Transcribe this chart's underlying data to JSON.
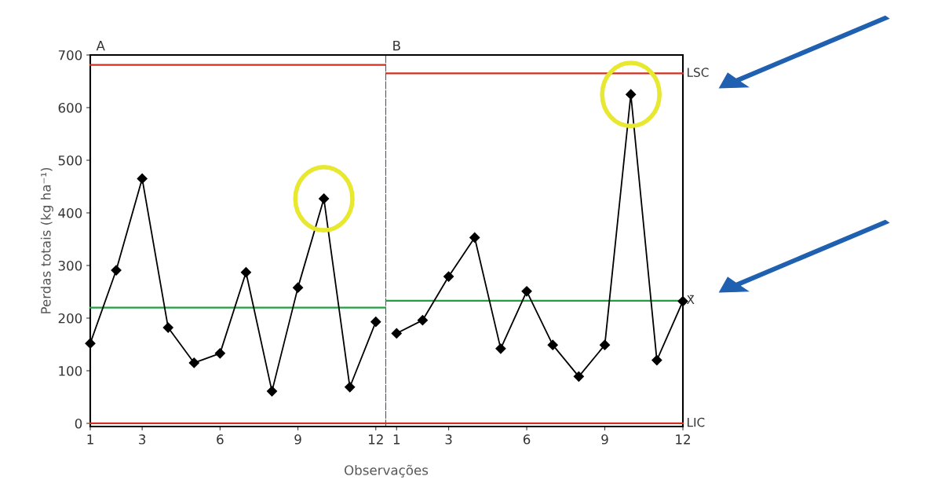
{
  "chart_data": [
    {
      "type": "line",
      "title": "A",
      "xlabel": "Observações",
      "ylabel": "Perdas totais (kg ha⁻¹)",
      "x": [
        1,
        2,
        3,
        4,
        5,
        6,
        7,
        8,
        9,
        10,
        11,
        12
      ],
      "xlim": [
        1,
        12.4
      ],
      "xticks": [
        1,
        3,
        6,
        9,
        12
      ],
      "ylim": [
        -6,
        700
      ],
      "yticks": [
        0,
        100,
        200,
        300,
        400,
        500,
        600,
        700
      ],
      "marker": "diamond",
      "line_style": "solid",
      "grid": false,
      "legend": false,
      "series": [
        {
          "color": "#000000",
          "values": [
            152,
            291,
            465,
            182,
            115,
            133,
            287,
            61,
            258,
            427,
            69,
            193
          ]
        }
      ],
      "ref_lines": [
        {
          "axis": "y",
          "value": 681,
          "color": "#d03020"
        },
        {
          "axis": "y",
          "value": 220,
          "color": "#20a040"
        },
        {
          "axis": "y",
          "value": 0,
          "color": "#d03020"
        }
      ]
    },
    {
      "type": "line",
      "title": "B",
      "x": [
        1,
        2,
        3,
        4,
        5,
        6,
        7,
        8,
        9,
        10,
        11,
        12
      ],
      "xlim": [
        0.6,
        12
      ],
      "xticks": [
        1,
        3,
        6,
        9,
        12
      ],
      "ylim": [
        -6,
        700
      ],
      "tick_labels": "x",
      "marker": "diamond",
      "line_style": "solid",
      "grid": false,
      "legend": false,
      "series": [
        {
          "color": "#000000",
          "values": [
            171,
            196,
            279,
            353,
            142,
            251,
            149,
            89,
            149,
            625,
            120,
            232
          ]
        }
      ],
      "ref_lines": [
        {
          "axis": "y",
          "value": 665,
          "label": "LSC",
          "color": "#d03020"
        },
        {
          "axis": "y",
          "value": 233,
          "label": "X̄",
          "color": "#20a040"
        },
        {
          "axis": "y",
          "value": 0,
          "label": "LIC",
          "color": "#d03020"
        }
      ]
    }
  ]
}
